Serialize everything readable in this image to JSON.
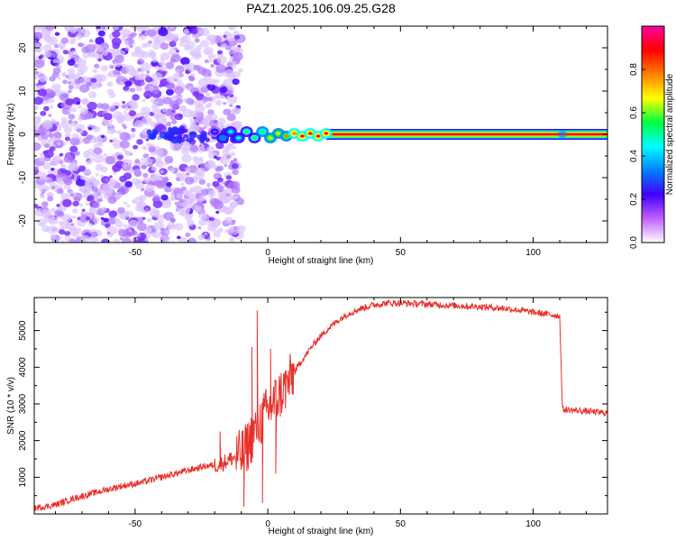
{
  "title": "PAZ1.2025.106.09.25.G28",
  "chart_data": [
    {
      "type": "heatmap",
      "xlabel": "Height of straight line (km)",
      "ylabel": "Frequency (Hz)",
      "xlim": [
        -88,
        128
      ],
      "ylim": [
        -25,
        25
      ],
      "x_ticks": [
        -50,
        0,
        50,
        100
      ],
      "x_tick_labels": [
        "-50",
        "0",
        "50",
        "100"
      ],
      "y_ticks": [
        -20,
        -10,
        0,
        10,
        20
      ],
      "y_tick_labels": [
        "-20",
        "-10",
        "0",
        "10",
        "20"
      ],
      "colorbar": {
        "label": "Normalized spectral amplitude",
        "range": [
          0,
          1
        ],
        "ticks": [
          0.0,
          0.2,
          0.4,
          0.6,
          0.8
        ],
        "tick_labels": [
          "0.0",
          "0.2",
          "0.4",
          "0.6",
          "0.8"
        ],
        "colors": [
          "#ffffff",
          "#c060ff",
          "#4000ff",
          "#0080ff",
          "#00ffff",
          "#00ff40",
          "#ffff00",
          "#ff8000",
          "#ff0000",
          "#ff00a0"
        ]
      },
      "features": [
        {
          "kind": "noise",
          "x_range": [
            -88,
            -10
          ],
          "y_range": [
            -25,
            25
          ],
          "level": 0.15
        },
        {
          "kind": "carrier",
          "x_range": [
            -10,
            128
          ],
          "frequency": 0.0,
          "level": 0.9
        }
      ],
      "grid": false
    },
    {
      "type": "line",
      "xlabel": "Height of straight line (km)",
      "ylabel": "SNR (10 * v/v)",
      "xlim": [
        -88,
        128
      ],
      "ylim": [
        0,
        5900
      ],
      "x_ticks": [
        -50,
        0,
        50,
        100
      ],
      "x_tick_labels": [
        "-50",
        "0",
        "50",
        "100"
      ],
      "y_ticks": [
        1000,
        2000,
        3000,
        4000,
        5000
      ],
      "y_tick_labels": [
        "1000",
        "2000",
        "3000",
        "4000",
        "5000"
      ],
      "series": [
        {
          "color": "#e8302a",
          "x": [
            -88,
            -80,
            -72,
            -64,
            -56,
            -48,
            -40,
            -32,
            -24,
            -18,
            -14,
            -10,
            -8,
            -6,
            -4,
            -2,
            0,
            2,
            4,
            6,
            8,
            10,
            12,
            15,
            18,
            22,
            26,
            30,
            35,
            40,
            45,
            50,
            60,
            70,
            80,
            90,
            100,
            110,
            111,
            120,
            128
          ],
          "y": [
            150,
            250,
            450,
            600,
            750,
            850,
            1000,
            1150,
            1300,
            1350,
            1500,
            1600,
            1800,
            2100,
            2400,
            2600,
            2800,
            3000,
            3200,
            3400,
            3600,
            3850,
            4100,
            4400,
            4700,
            5000,
            5250,
            5450,
            5600,
            5700,
            5750,
            5750,
            5720,
            5680,
            5650,
            5600,
            5500,
            5400,
            2850,
            2800,
            2750
          ],
          "noise": 90,
          "spikes": [
            {
              "x": -18,
              "y": 2250
            },
            {
              "x": -9,
              "y": 200
            },
            {
              "x": -6,
              "y": 4550
            },
            {
              "x": -4,
              "y": 5550
            },
            {
              "x": -2,
              "y": 300
            },
            {
              "x": 1,
              "y": 4500
            },
            {
              "x": 3,
              "y": 1100
            }
          ]
        }
      ],
      "grid": false
    }
  ]
}
